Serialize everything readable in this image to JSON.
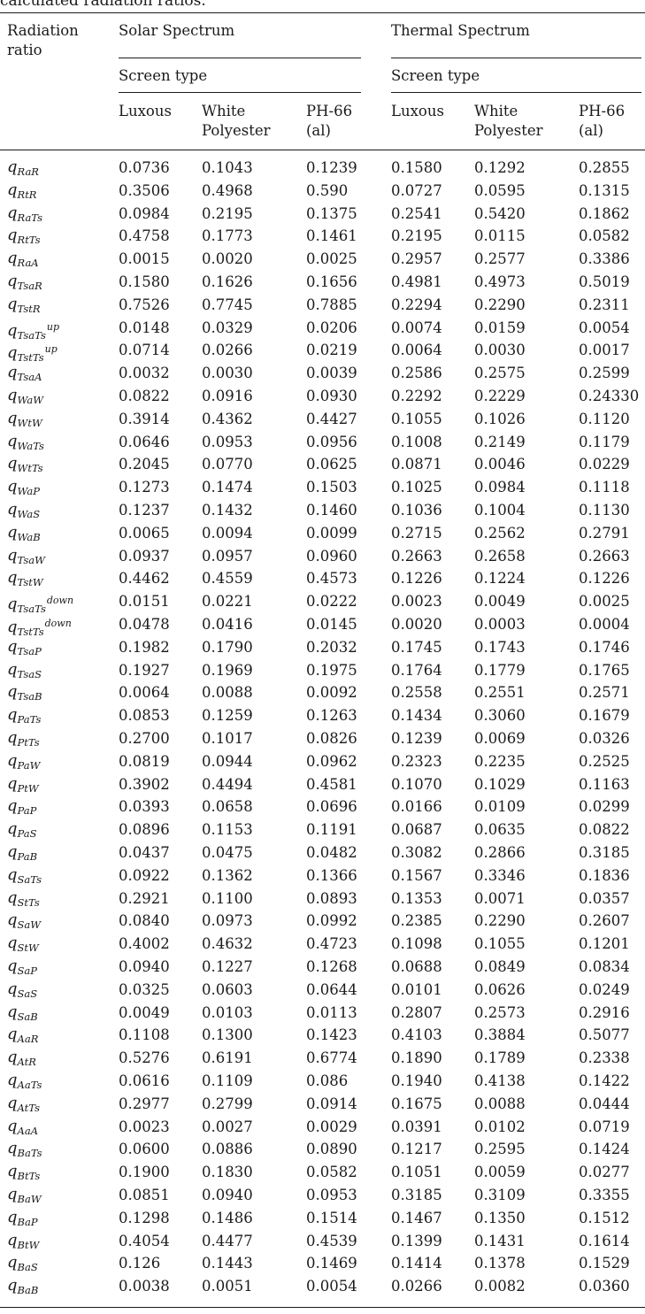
{
  "caption": "calculated radiation ratios.",
  "header": {
    "radiation_ratio_line1": "Radiation",
    "radiation_ratio_line2": "ratio",
    "solar_group": "Solar Spectrum",
    "thermal_group": "Thermal Spectrum",
    "solar_screen_type": "Screen type",
    "thermal_screen_type": "Screen type",
    "columns": [
      {
        "line1": "Luxous",
        "line2": ""
      },
      {
        "line1": "White",
        "line2": "Polyester"
      },
      {
        "line1": "PH-66",
        "line2": "(al)"
      },
      {
        "line1": "Luxous",
        "line2": ""
      },
      {
        "line1": "White",
        "line2": "Polyester"
      },
      {
        "line1": "PH-66",
        "line2": "(al)"
      }
    ]
  },
  "rows": [
    {
      "q": "q",
      "sub": "RaR",
      "sup": "",
      "values": [
        "0.0736",
        "0.1043",
        "0.1239",
        "0.1580",
        "0.1292",
        "0.2855"
      ]
    },
    {
      "q": "q",
      "sub": "RtR",
      "sup": "",
      "values": [
        "0.3506",
        "0.4968",
        "0.590",
        "0.0727",
        "0.0595",
        "0.1315"
      ]
    },
    {
      "q": "q",
      "sub": "RaTs",
      "sup": "",
      "values": [
        "0.0984",
        "0.2195",
        "0.1375",
        "0.2541",
        "0.5420",
        "0.1862"
      ]
    },
    {
      "q": "q",
      "sub": "RtTs",
      "sup": "",
      "values": [
        "0.4758",
        "0.1773",
        "0.1461",
        "0.2195",
        "0.0115",
        "0.0582"
      ]
    },
    {
      "q": "q",
      "sub": "RaA",
      "sup": "",
      "values": [
        "0.0015",
        "0.0020",
        "0.0025",
        "0.2957",
        "0.2577",
        "0.3386"
      ]
    },
    {
      "q": "q",
      "sub": "TsaR",
      "sup": "",
      "values": [
        "0.1580",
        "0.1626",
        "0.1656",
        "0.4981",
        "0.4973",
        "0.5019"
      ]
    },
    {
      "q": "q",
      "sub": "TstR",
      "sup": "",
      "values": [
        "0.7526",
        "0.7745",
        "0.7885",
        "0.2294",
        "0.2290",
        "0.2311"
      ]
    },
    {
      "q": "q",
      "sub": "TsaTs",
      "sup": "up",
      "values": [
        "0.0148",
        "0.0329",
        "0.0206",
        "0.0074",
        "0.0159",
        "0.0054"
      ]
    },
    {
      "q": "q",
      "sub": "TstTs",
      "sup": "up",
      "values": [
        "0.0714",
        "0.0266",
        "0.0219",
        "0.0064",
        "0.0030",
        "0.0017"
      ]
    },
    {
      "q": "q",
      "sub": "TsaA",
      "sup": "",
      "values": [
        "0.0032",
        "0.0030",
        "0.0039",
        "0.2586",
        "0.2575",
        "0.2599"
      ]
    },
    {
      "q": "q",
      "sub": "WaW",
      "sup": "",
      "values": [
        "0.0822",
        "0.0916",
        "0.0930",
        "0.2292",
        "0.2229",
        "0.24330"
      ]
    },
    {
      "q": "q",
      "sub": "WtW",
      "sup": "",
      "values": [
        "0.3914",
        "0.4362",
        "0.4427",
        "0.1055",
        "0.1026",
        "0.1120"
      ]
    },
    {
      "q": "q",
      "sub": "WaTs",
      "sup": "",
      "values": [
        "0.0646",
        "0.0953",
        "0.0956",
        "0.1008",
        "0.2149",
        "0.1179"
      ]
    },
    {
      "q": "q",
      "sub": "WtTs",
      "sup": "",
      "values": [
        "0.2045",
        "0.0770",
        "0.0625",
        "0.0871",
        "0.0046",
        "0.0229"
      ]
    },
    {
      "q": "q",
      "sub": "WaP",
      "sup": "",
      "values": [
        "0.1273",
        "0.1474",
        "0.1503",
        "0.1025",
        "0.0984",
        "0.1118"
      ]
    },
    {
      "q": "q",
      "sub": "WaS",
      "sup": "",
      "values": [
        "0.1237",
        "0.1432",
        "0.1460",
        "0.1036",
        "0.1004",
        "0.1130"
      ]
    },
    {
      "q": "q",
      "sub": "WaB",
      "sup": "",
      "values": [
        "0.0065",
        "0.0094",
        "0.0099",
        "0.2715",
        "0.2562",
        "0.2791"
      ]
    },
    {
      "q": "q",
      "sub": "TsaW",
      "sup": "",
      "values": [
        "0.0937",
        "0.0957",
        "0.0960",
        "0.2663",
        "0.2658",
        "0.2663"
      ]
    },
    {
      "q": "q",
      "sub": "TstW",
      "sup": "",
      "values": [
        "0.4462",
        "0.4559",
        "0.4573",
        "0.1226",
        "0.1224",
        "0.1226"
      ]
    },
    {
      "q": "q",
      "sub": "TsaTs",
      "sup": "down",
      "values": [
        "0.0151",
        "0.0221",
        "0.0222",
        "0.0023",
        "0.0049",
        "0.0025"
      ]
    },
    {
      "q": "q",
      "sub": "TstTs",
      "sup": "down",
      "values": [
        "0.0478",
        "0.0416",
        "0.0145",
        "0.0020",
        "0.0003",
        "0.0004"
      ]
    },
    {
      "q": "q",
      "sub": "TsaP",
      "sup": "",
      "values": [
        "0.1982",
        "0.1790",
        "0.2032",
        "0.1745",
        "0.1743",
        "0.1746"
      ]
    },
    {
      "q": "q",
      "sub": "TsaS",
      "sup": "",
      "values": [
        "0.1927",
        "0.1969",
        "0.1975",
        "0.1764",
        "0.1779",
        "0.1765"
      ]
    },
    {
      "q": "q",
      "sub": "TsaB",
      "sup": "",
      "values": [
        "0.0064",
        "0.0088",
        "0.0092",
        "0.2558",
        "0.2551",
        "0.2571"
      ]
    },
    {
      "q": "q",
      "sub": "PaTs",
      "sup": "",
      "values": [
        "0.0853",
        "0.1259",
        "0.1263",
        "0.1434",
        "0.3060",
        "0.1679"
      ]
    },
    {
      "q": "q",
      "sub": "PtTs",
      "sup": "",
      "values": [
        "0.2700",
        "0.1017",
        "0.0826",
        "0.1239",
        "0.0069",
        "0.0326"
      ]
    },
    {
      "q": "q",
      "sub": "PaW",
      "sup": "",
      "values": [
        "0.0819",
        "0.0944",
        "0.0962",
        "0.2323",
        "0.2235",
        "0.2525"
      ]
    },
    {
      "q": "q",
      "sub": "PtW",
      "sup": "",
      "values": [
        "0.3902",
        "0.4494",
        "0.4581",
        "0.1070",
        "0.1029",
        "0.1163"
      ]
    },
    {
      "q": "q",
      "sub": "PaP",
      "sup": "",
      "values": [
        "0.0393",
        "0.0658",
        "0.0696",
        "0.0166",
        "0.0109",
        "0.0299"
      ]
    },
    {
      "q": "q",
      "sub": "PaS",
      "sup": "",
      "values": [
        "0.0896",
        "0.1153",
        "0.1191",
        "0.0687",
        "0.0635",
        "0.0822"
      ]
    },
    {
      "q": "q",
      "sub": "PaB",
      "sup": "",
      "values": [
        "0.0437",
        "0.0475",
        "0.0482",
        "0.3082",
        "0.2866",
        "0.3185"
      ]
    },
    {
      "q": "q",
      "sub": "SaTs",
      "sup": "",
      "values": [
        "0.0922",
        "0.1362",
        "0.1366",
        "0.1567",
        "0.3346",
        "0.1836"
      ]
    },
    {
      "q": "q",
      "sub": "StTs",
      "sup": "",
      "values": [
        "0.2921",
        "0.1100",
        "0.0893",
        "0.1353",
        "0.0071",
        "0.0357"
      ]
    },
    {
      "q": "q",
      "sub": "SaW",
      "sup": "",
      "values": [
        "0.0840",
        "0.0973",
        "0.0992",
        "0.2385",
        "0.2290",
        "0.2607"
      ]
    },
    {
      "q": "q",
      "sub": "StW",
      "sup": "",
      "values": [
        "0.4002",
        "0.4632",
        "0.4723",
        "0.1098",
        "0.1055",
        "0.1201"
      ]
    },
    {
      "q": "q",
      "sub": "SaP",
      "sup": "",
      "values": [
        "0.0940",
        "0.1227",
        "0.1268",
        "0.0688",
        "0.0849",
        "0.0834"
      ]
    },
    {
      "q": "q",
      "sub": "SaS",
      "sup": "",
      "values": [
        "0.0325",
        "0.0603",
        "0.0644",
        "0.0101",
        "0.0626",
        "0.0249"
      ]
    },
    {
      "q": "q",
      "sub": "SaB",
      "sup": "",
      "values": [
        "0.0049",
        "0.0103",
        "0.0113",
        "0.2807",
        "0.2573",
        "0.2916"
      ]
    },
    {
      "q": "q",
      "sub": "AaR",
      "sup": "",
      "values": [
        "0.1108",
        "0.1300",
        "0.1423",
        "0.4103",
        "0.3884",
        "0.5077"
      ]
    },
    {
      "q": "q",
      "sub": "AtR",
      "sup": "",
      "values": [
        "0.5276",
        "0.6191",
        "0.6774",
        "0.1890",
        "0.1789",
        "0.2338"
      ]
    },
    {
      "q": "q",
      "sub": "AaTs",
      "sup": "",
      "values": [
        "0.0616",
        "0.1109",
        "0.086",
        "0.1940",
        "0.4138",
        "0.1422"
      ]
    },
    {
      "q": "q",
      "sub": "AtTs",
      "sup": "",
      "values": [
        "0.2977",
        "0.2799",
        "0.0914",
        "0.1675",
        "0.0088",
        "0.0444"
      ]
    },
    {
      "q": "q",
      "sub": "AaA",
      "sup": "",
      "values": [
        "0.0023",
        "0.0027",
        "0.0029",
        "0.0391",
        "0.0102",
        "0.0719"
      ]
    },
    {
      "q": "q",
      "sub": "BaTs",
      "sup": "",
      "values": [
        "0.0600",
        "0.0886",
        "0.0890",
        "0.1217",
        "0.2595",
        "0.1424"
      ]
    },
    {
      "q": "q",
      "sub": "BtTs",
      "sup": "",
      "values": [
        "0.1900",
        "0.1830",
        "0.0582",
        "0.1051",
        "0.0059",
        "0.0277"
      ]
    },
    {
      "q": "q",
      "sub": "BaW",
      "sup": "",
      "values": [
        "0.0851",
        "0.0940",
        "0.0953",
        "0.3185",
        "0.3109",
        "0.3355"
      ]
    },
    {
      "q": "q",
      "sub": "BaP",
      "sup": "",
      "values": [
        "0.1298",
        "0.1486",
        "0.1514",
        "0.1467",
        "0.1350",
        "0.1512"
      ]
    },
    {
      "q": "q",
      "sub": "BtW",
      "sup": "",
      "values": [
        "0.4054",
        "0.4477",
        "0.4539",
        "0.1399",
        "0.1431",
        "0.1614"
      ]
    },
    {
      "q": "q",
      "sub": "BaS",
      "sup": "",
      "values": [
        "0.126",
        "0.1443",
        "0.1469",
        "0.1414",
        "0.1378",
        "0.1529"
      ]
    },
    {
      "q": "q",
      "sub": "BaB",
      "sup": "",
      "values": [
        "0.0038",
        "0.0051",
        "0.0054",
        "0.0266",
        "0.0082",
        "0.0360"
      ]
    }
  ]
}
